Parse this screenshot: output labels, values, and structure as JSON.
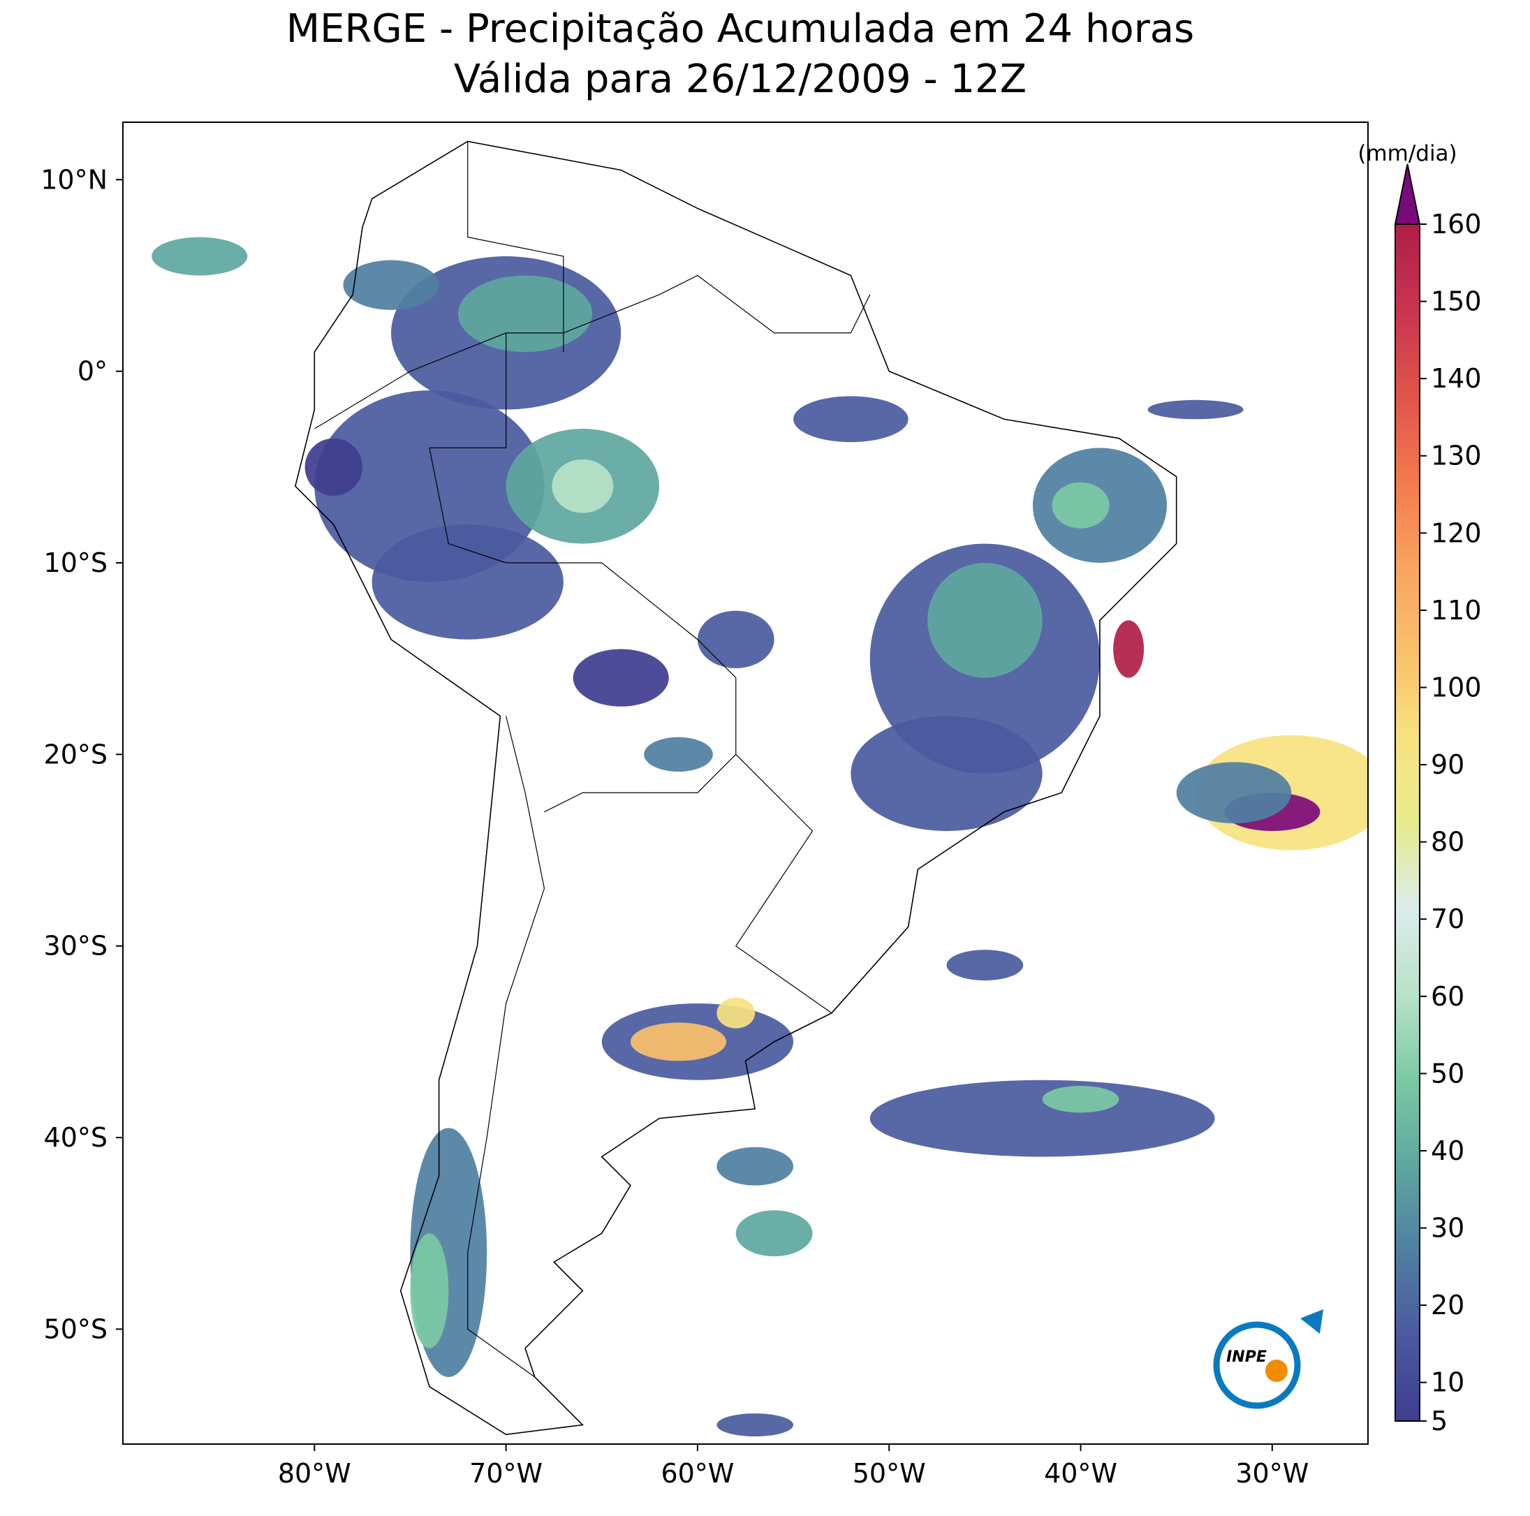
{
  "chart_data": {
    "type": "map",
    "title": "MERGE - Precipitação Acumulada em 24 horas",
    "subtitle": "Válida para 26/12/2009 - 12Z",
    "xlim": [
      -90,
      -25
    ],
    "ylim": [
      -56,
      13
    ],
    "xticks": [
      {
        "value": -80,
        "label": "80°W"
      },
      {
        "value": -70,
        "label": "70°W"
      },
      {
        "value": -60,
        "label": "60°W"
      },
      {
        "value": -50,
        "label": "50°W"
      },
      {
        "value": -40,
        "label": "40°W"
      },
      {
        "value": -30,
        "label": "30°W"
      }
    ],
    "yticks": [
      {
        "value": 10,
        "label": "10°N"
      },
      {
        "value": 0,
        "label": "0°"
      },
      {
        "value": -10,
        "label": "10°S"
      },
      {
        "value": -20,
        "label": "20°S"
      },
      {
        "value": -30,
        "label": "30°S"
      },
      {
        "value": -40,
        "label": "40°S"
      },
      {
        "value": -50,
        "label": "50°S"
      }
    ],
    "colorbar": {
      "label": "(mm/dia)",
      "lim": [
        5,
        160
      ],
      "ticks": [
        5,
        10,
        20,
        30,
        40,
        50,
        60,
        70,
        80,
        90,
        100,
        110,
        120,
        130,
        140,
        150,
        160
      ],
      "colors": [
        "#3f3d8f",
        "#4a5a9e",
        "#4f7fa2",
        "#5ea7a0",
        "#7cc9a4",
        "#b8e2c9",
        "#dcecec",
        "#e6eb8c",
        "#f7e27f",
        "#f9c06a",
        "#f9a35f",
        "#f3794c",
        "#e0544a",
        "#c93550",
        "#b01d47"
      ],
      "over_color": "#7b0a7a"
    },
    "logo_text": "INPE"
  }
}
